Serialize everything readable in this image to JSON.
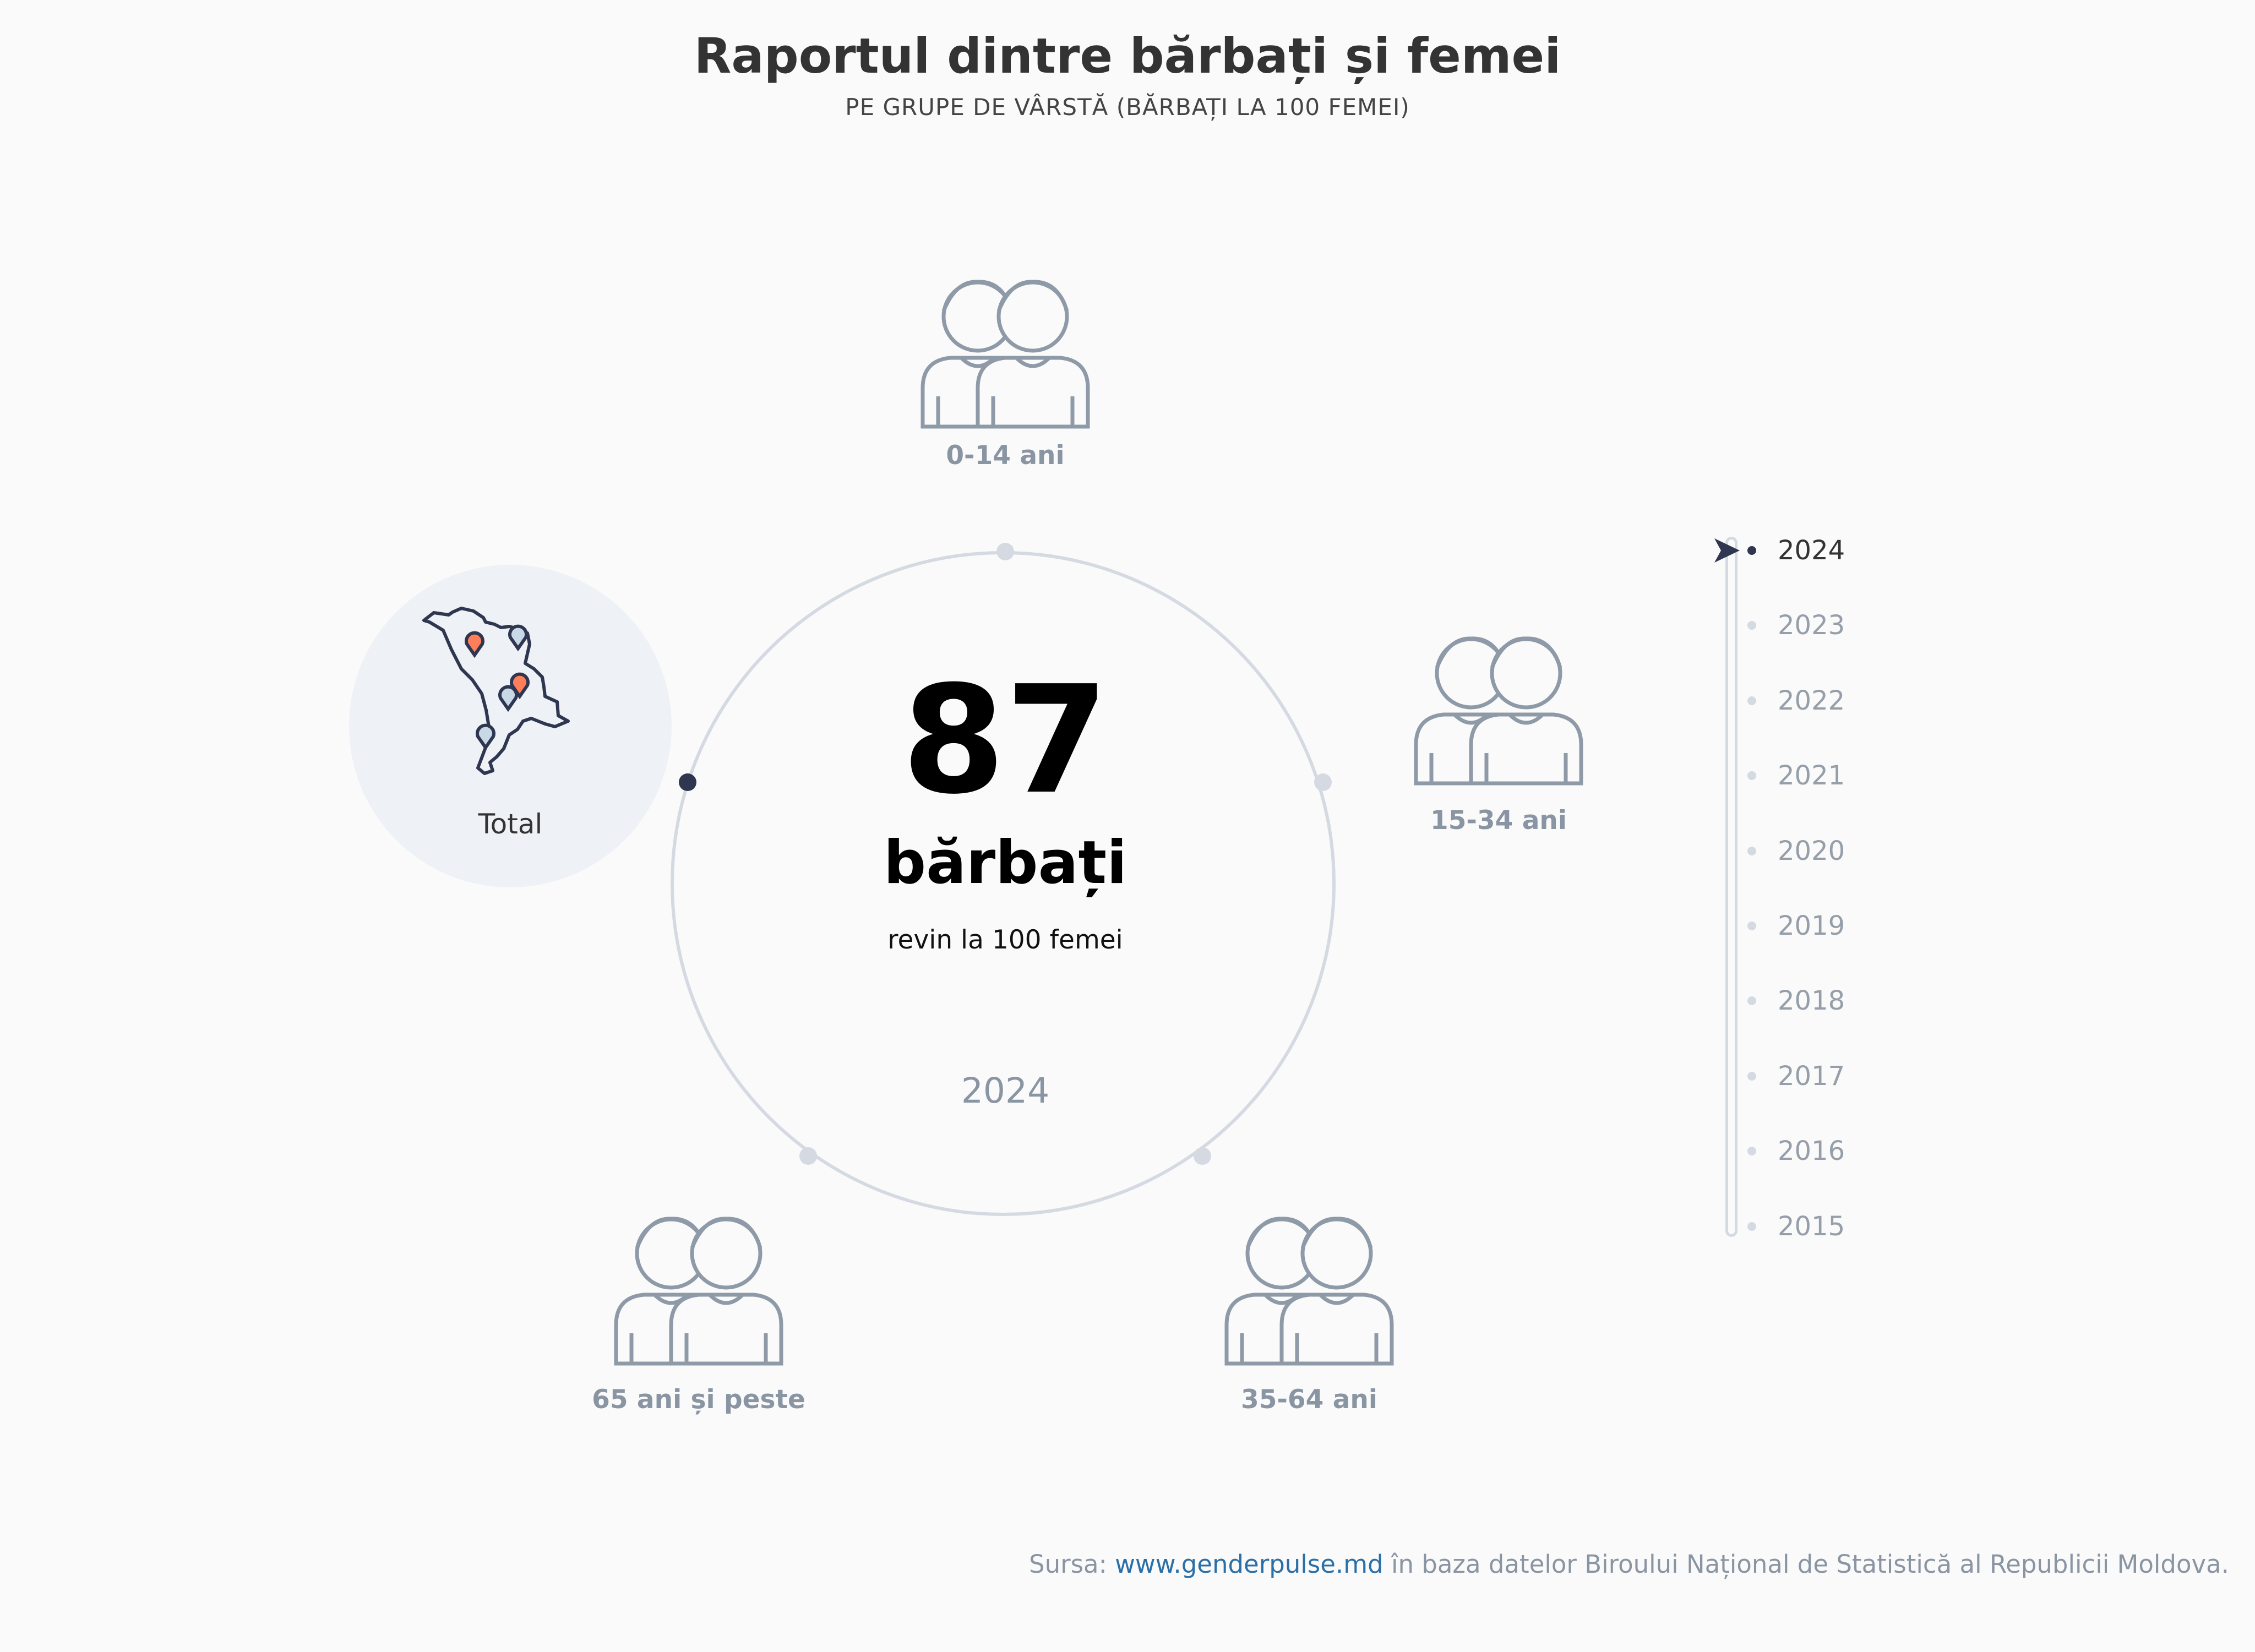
{
  "header": {
    "title": "Raportul dintre bărbați și femei",
    "subtitle": "PE GRUPE DE VÂRSTĂ (BĂRBAȚI LA 100 FEMEI)"
  },
  "center": {
    "value": "87",
    "unit": "bărbați",
    "description": "revin la 100 femei",
    "year": "2024"
  },
  "selected_group": "Total",
  "groups": [
    {
      "label": "Total",
      "icon": "moldova-map-icon",
      "active": true
    },
    {
      "label": "0-14 ani",
      "icon": "children-icon"
    },
    {
      "label": "15-34 ani",
      "icon": "young-adults-icon"
    },
    {
      "label": "35-64 ani",
      "icon": "adults-icon"
    },
    {
      "label": "65 ani și peste",
      "icon": "seniors-icon"
    }
  ],
  "timeline": {
    "selected": "2024",
    "years": [
      "2024",
      "2023",
      "2022",
      "2021",
      "2020",
      "2019",
      "2018",
      "2017",
      "2016",
      "2015"
    ]
  },
  "source": {
    "prefix": "Sursa: ",
    "link": "www.genderpulse.md",
    "suffix": " în baza datelor Biroului Național de Statistică al Republicii Moldova."
  },
  "colors": {
    "accent_dark": "#2e3650",
    "icon_gray": "#8e9aa7",
    "pin_orange": "#ff7f5a",
    "pin_blue": "#c9d8e6",
    "ring": "#d5dae2"
  }
}
